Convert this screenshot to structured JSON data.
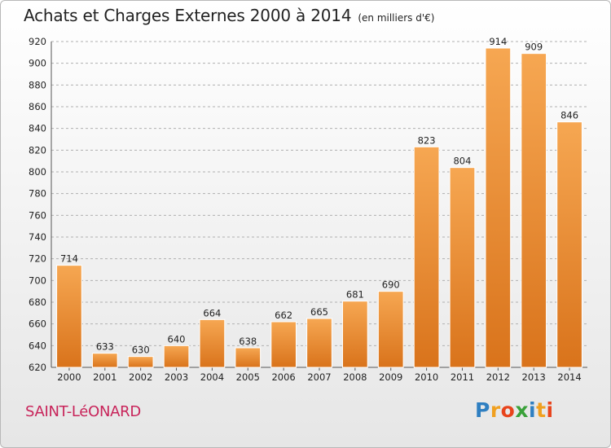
{
  "title": "Achats et Charges Externes 2000 à 2014",
  "unit": "(en milliers d'€)",
  "commune": "SAINT-LéONARD",
  "logo": {
    "letters": [
      "P",
      "r",
      "o",
      "x",
      "i",
      "t",
      "i"
    ],
    "colors": [
      "#2f7fc1",
      "#f0a020",
      "#e8441c",
      "#3aa13a",
      "#2f7fc1",
      "#f0a020",
      "#e8441c"
    ]
  },
  "colors": {
    "bar_light": "#f6a752",
    "bar_dark": "#d9731b",
    "grid": "#b0b0b0"
  },
  "chart_data": {
    "type": "bar",
    "title": "Achats et Charges Externes 2000 à 2014",
    "categories": [
      "2000",
      "2001",
      "2002",
      "2003",
      "2004",
      "2005",
      "2006",
      "2007",
      "2008",
      "2009",
      "2010",
      "2011",
      "2012",
      "2013",
      "2014"
    ],
    "values": [
      714,
      633,
      630,
      640,
      664,
      638,
      662,
      665,
      681,
      690,
      823,
      804,
      914,
      909,
      846
    ],
    "ylim": [
      620,
      920
    ],
    "yticks": [
      620,
      640,
      660,
      680,
      700,
      720,
      740,
      760,
      780,
      800,
      820,
      840,
      860,
      880,
      900,
      920
    ],
    "grid": true
  }
}
